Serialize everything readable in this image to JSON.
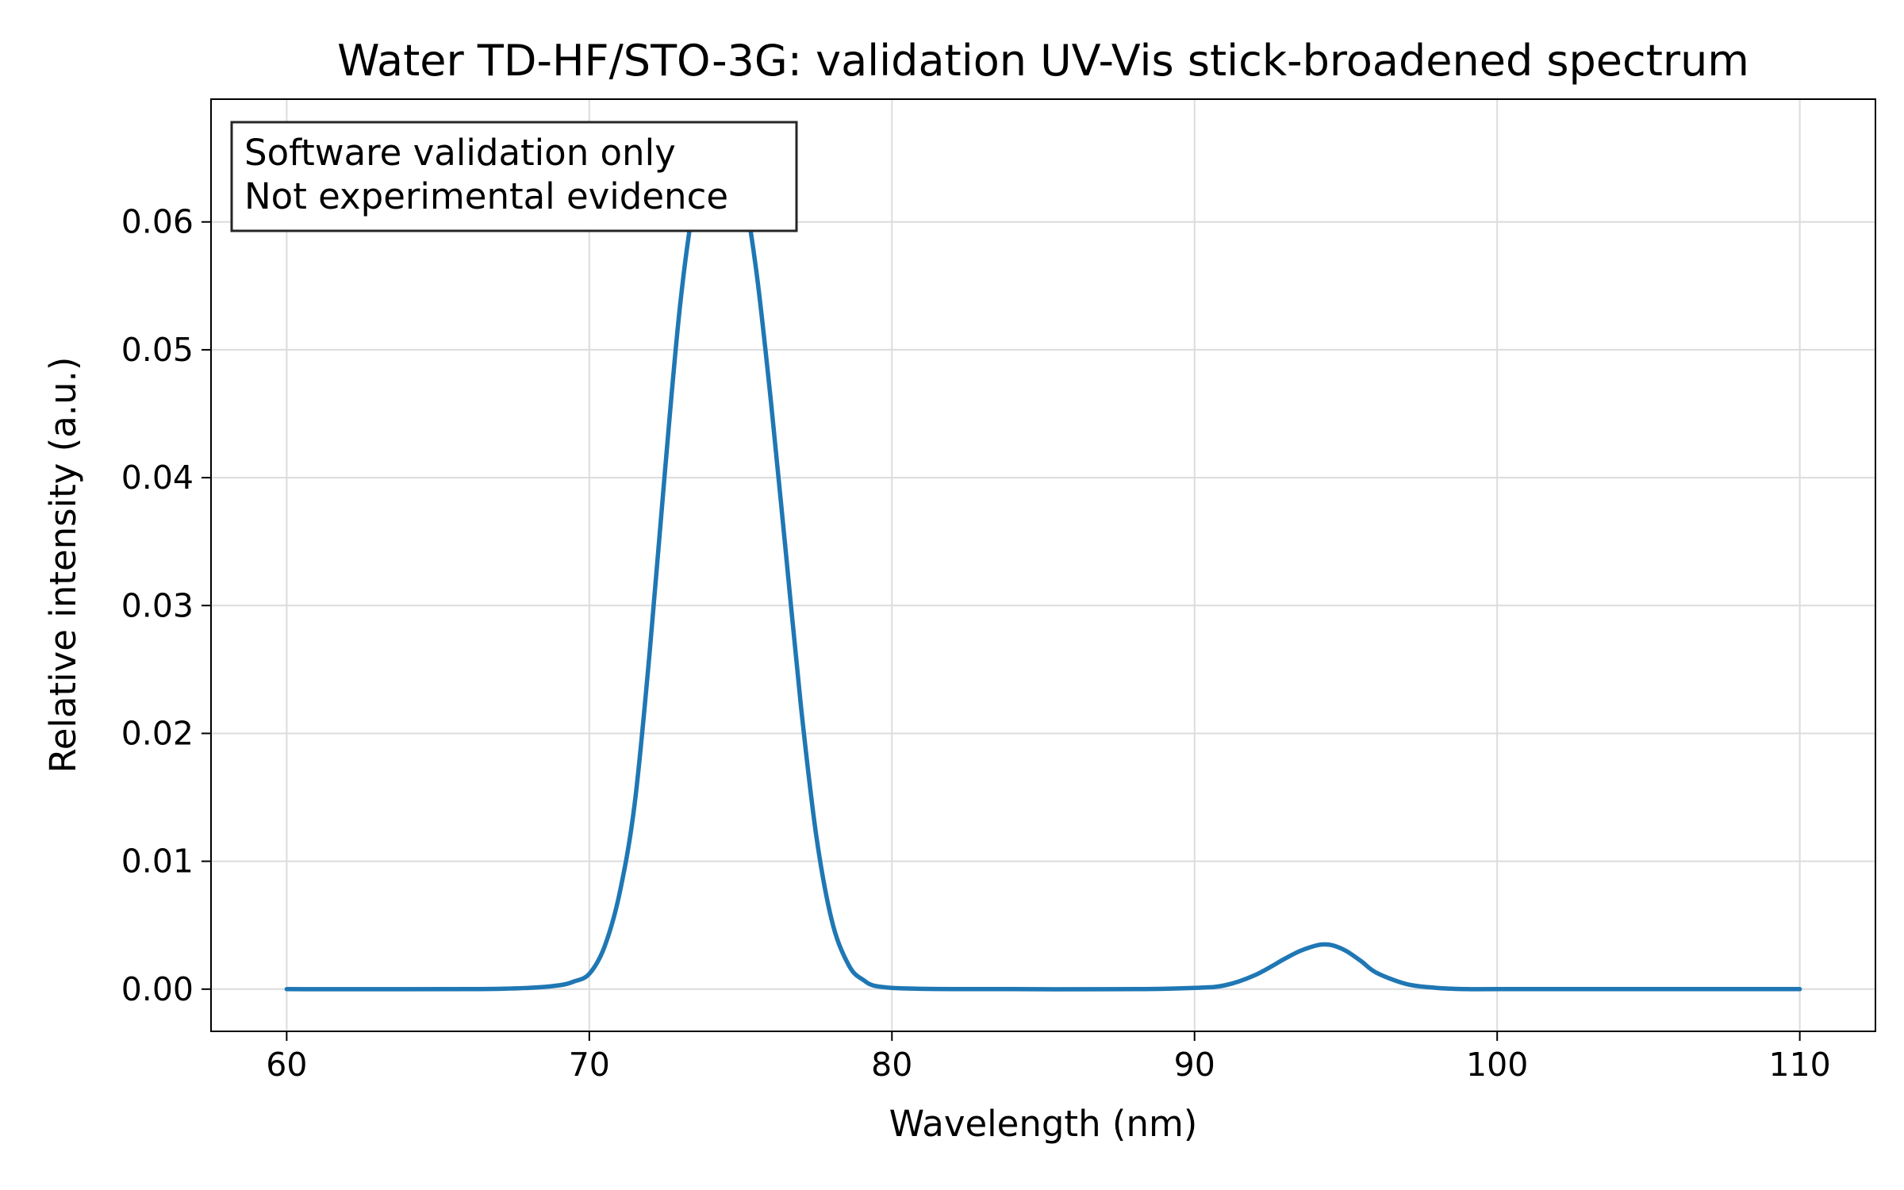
{
  "chart_data": {
    "type": "line",
    "title": "Water TD-HF/STO-3G: validation UV-Vis stick-broadened spectrum",
    "xlabel": "Wavelength (nm)",
    "ylabel": "Relative intensity (a.u.)",
    "xlim": [
      57.5,
      112.5
    ],
    "ylim": [
      -0.0033,
      0.0696
    ],
    "x_ticks": [
      60,
      70,
      80,
      90,
      100,
      110
    ],
    "y_ticks": [
      0.0,
      0.01,
      0.02,
      0.03,
      0.04,
      0.05,
      0.06
    ],
    "y_tick_labels": [
      "0.00",
      "0.01",
      "0.02",
      "0.03",
      "0.04",
      "0.05",
      "0.06"
    ],
    "grid": true,
    "annotation": {
      "lines": [
        "Software validation only",
        "Not experimental evidence"
      ],
      "placement": "top-left"
    },
    "series": [
      {
        "color": "#1f77b4",
        "x": [
          60,
          66,
          68,
          69,
          69.5,
          70,
          70.5,
          71,
          71.5,
          72,
          72.5,
          73,
          73.5,
          74,
          74.5,
          75,
          75.5,
          76,
          76.5,
          77,
          77.5,
          78,
          78.5,
          79,
          80,
          84,
          88,
          90,
          91,
          92,
          93,
          93.5,
          94,
          94.3,
          94.6,
          95,
          95.5,
          96,
          97,
          98,
          99,
          100,
          104,
          110
        ],
        "y": [
          0.0,
          0.0,
          0.0001,
          0.0003,
          0.0006,
          0.0012,
          0.0033,
          0.0075,
          0.0145,
          0.0265,
          0.0405,
          0.0535,
          0.062,
          0.0658,
          0.066,
          0.0635,
          0.0565,
          0.046,
          0.034,
          0.022,
          0.012,
          0.0055,
          0.0022,
          0.0008,
          0.0001,
          0.0,
          0.0,
          0.0001,
          0.0003,
          0.0011,
          0.0024,
          0.003,
          0.0034,
          0.0035,
          0.0034,
          0.003,
          0.0022,
          0.0013,
          0.0004,
          0.0001,
          0.0,
          0.0,
          0.0,
          0.0
        ]
      }
    ]
  }
}
